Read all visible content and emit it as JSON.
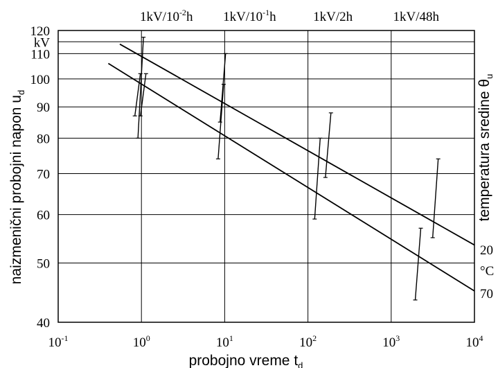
{
  "chart_data": {
    "type": "line",
    "x_scale": "log",
    "y_scale": "log",
    "xlim": [
      0.1,
      10000
    ],
    "ylim": [
      40,
      120
    ],
    "grid": true,
    "xlabel": {
      "text": "probojno vreme t",
      "sub": "d"
    },
    "ylabel": {
      "text": "naizmenični probojni napon u",
      "sub": "d"
    },
    "right_label": {
      "text": "temperatura sredine θ",
      "sub": "u"
    },
    "y_unit": "kV",
    "x_ticks": [
      {
        "value": 0.1,
        "base": "10",
        "exp": "-1"
      },
      {
        "value": 1,
        "base": "10",
        "exp": "0"
      },
      {
        "value": 10,
        "base": "10",
        "exp": "1"
      },
      {
        "value": 100,
        "base": "10",
        "exp": "2"
      },
      {
        "value": 1000,
        "base": "10",
        "exp": "3"
      },
      {
        "value": 10000,
        "base": "10",
        "exp": "4"
      }
    ],
    "y_ticks": [
      {
        "value": 120,
        "label": "120"
      },
      {
        "value": 110,
        "label": "110"
      },
      {
        "value": 100,
        "label": "100"
      },
      {
        "value": 90,
        "label": "90"
      },
      {
        "value": 80,
        "label": "80"
      },
      {
        "value": 70,
        "label": "70"
      },
      {
        "value": 60,
        "label": "60"
      },
      {
        "value": 50,
        "label": "50"
      },
      {
        "value": 40,
        "label": "40"
      }
    ],
    "y_grid": [
      115,
      110,
      100,
      90,
      80,
      70,
      60,
      50
    ],
    "x_grid": [
      1,
      10,
      100,
      1000
    ],
    "top_labels": [
      {
        "x": 1,
        "pre": "1kV/10",
        "exp": "-2",
        "post": "h"
      },
      {
        "x": 10,
        "pre": "1kV/10",
        "exp": "-1",
        "post": "h"
      },
      {
        "x": 100,
        "pre": "1kV/2h",
        "exp": "",
        "post": ""
      },
      {
        "x": 1000,
        "pre": "1kV/48h",
        "exp": "",
        "post": ""
      }
    ],
    "right_tick_labels": [
      "20",
      "°C",
      "70"
    ],
    "series": [
      {
        "name": "20",
        "x": [
          0.55,
          10000
        ],
        "y": [
          114,
          53.5
        ]
      },
      {
        "name": "70",
        "x": [
          0.4,
          10000
        ],
        "y": [
          106,
          45
        ]
      }
    ],
    "error_bars": [
      {
        "x": 0.98,
        "y_low": 80,
        "y_high": 117
      },
      {
        "x": 0.9,
        "y_low": 87,
        "y_high": 102
      },
      {
        "x": 1.05,
        "y_low": 87,
        "y_high": 102
      },
      {
        "x": 9.5,
        "y_low": 85,
        "y_high": 110
      },
      {
        "x": 9.0,
        "y_low": 74,
        "y_high": 98
      },
      {
        "x": 175,
        "y_low": 69,
        "y_high": 88
      },
      {
        "x": 130,
        "y_low": 59,
        "y_high": 80
      },
      {
        "x": 3400,
        "y_low": 55,
        "y_high": 74
      },
      {
        "x": 2100,
        "y_low": 43.5,
        "y_high": 57
      }
    ]
  }
}
